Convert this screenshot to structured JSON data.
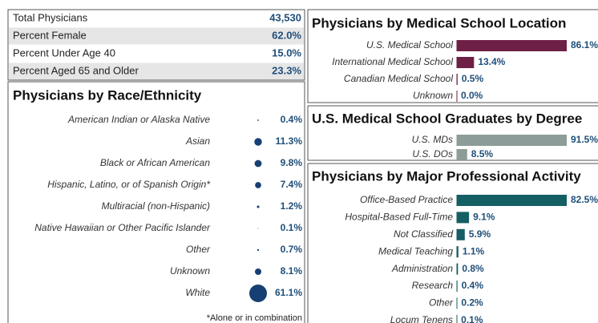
{
  "summary": {
    "rows": [
      [
        "Total Physicians",
        "43,530"
      ],
      [
        "Percent Female",
        "62.0%"
      ],
      [
        "Percent Under Age 40",
        "15.0%"
      ],
      [
        "Percent Aged 65 and Older",
        "23.3%"
      ]
    ]
  },
  "chart_data": [
    {
      "type": "bubble",
      "title": "Physicians by Race/Ethnicity",
      "note": "*Alone or in combination",
      "color": "#173f73",
      "categories": [
        "American Indian or Alaska Native",
        "Asian",
        "Black or African American",
        "Hispanic, Latino, or of Spanish Origin*",
        "Multiracial (non-Hispanic)",
        "Native Hawaiian or Other Pacific Islander",
        "Other",
        "Unknown",
        "White"
      ],
      "values": [
        0.4,
        11.3,
        9.8,
        7.4,
        1.2,
        0.1,
        0.7,
        8.1,
        61.1
      ],
      "value_labels": [
        "0.4%",
        "11.3%",
        "9.8%",
        "7.4%",
        "1.2%",
        "0.1%",
        "0.7%",
        "8.1%",
        "61.1%"
      ]
    },
    {
      "type": "bar",
      "title": "Physicians by Medical School Location",
      "color": "#6d1f45",
      "categories": [
        "U.S. Medical School",
        "International Medical School",
        "Canadian Medical School",
        "Unknown"
      ],
      "values": [
        86.1,
        13.4,
        0.5,
        0.0
      ],
      "value_labels": [
        "86.1%",
        "13.4%",
        "0.5%",
        "0.0%"
      ]
    },
    {
      "type": "bar",
      "title": "U.S. Medical School Graduates by Degree",
      "color": "#8c9c98",
      "categories": [
        "U.S. MDs",
        "U.S. DOs"
      ],
      "values": [
        91.5,
        8.5
      ],
      "value_labels": [
        "91.5%",
        "8.5%"
      ]
    },
    {
      "type": "bar",
      "title": "Physicians by Major Professional Activity",
      "color": "#155e63",
      "categories": [
        "Office-Based Practice",
        "Hospital-Based Full-Time",
        "Not Classified",
        "Medical Teaching",
        "Administration",
        "Research",
        "Other",
        "Locum Tenens"
      ],
      "values": [
        82.5,
        9.1,
        5.9,
        1.1,
        0.8,
        0.4,
        0.2,
        0.1
      ],
      "value_labels": [
        "82.5%",
        "9.1%",
        "5.9%",
        "1.1%",
        "0.8%",
        "0.4%",
        "0.2%",
        "0.1%"
      ]
    }
  ]
}
